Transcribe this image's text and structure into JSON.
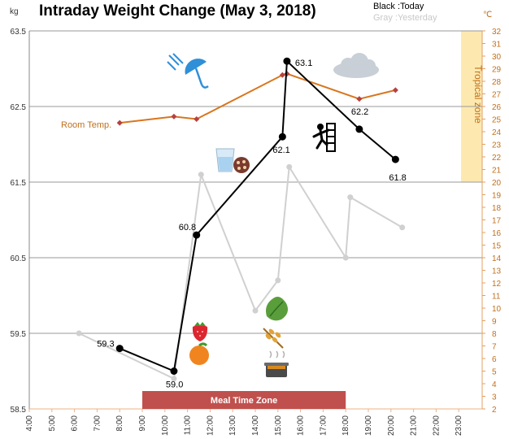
{
  "chart_data": {
    "type": "line",
    "title": "Intraday Weight Change (May 3, 2018)",
    "y_unit": "kg",
    "y2_unit": "℃",
    "ylim": [
      58.5,
      63.5
    ],
    "y_ticks": [
      "58.5",
      "59.5",
      "60.5",
      "61.5",
      "62.5",
      "63.5"
    ],
    "y2lim": [
      2,
      32
    ],
    "x_ticks": [
      "4:00",
      "5:00",
      "6:00",
      "7:00",
      "8:00",
      "9:00",
      "10:00",
      "11:00",
      "12:00",
      "13:00",
      "14:00",
      "15:00",
      "16:00",
      "17:00",
      "18:00",
      "19:00",
      "20:00",
      "21:00",
      "22:00",
      "23:00"
    ],
    "legend": {
      "today": "Black :Today",
      "yesterday": "Gray :Yesterday"
    },
    "series": [
      {
        "name": "Today",
        "color": "#000000",
        "x": [
          8.0,
          10.4,
          11.4,
          15.2,
          15.4,
          18.6,
          20.2
        ],
        "values": [
          59.3,
          59.0,
          60.8,
          62.1,
          63.1,
          62.2,
          61.8
        ],
        "labels": [
          "59.3",
          "59.0",
          "60.8",
          "62.1",
          "63.1",
          "62.2",
          "61.8"
        ]
      },
      {
        "name": "Yesterday",
        "color": "#d0d0d0",
        "x": [
          6.2,
          10.4,
          11.6,
          14.0,
          15.0,
          15.5,
          18.0,
          18.2,
          20.5
        ],
        "values": [
          59.5,
          58.9,
          61.6,
          59.8,
          60.2,
          61.7,
          60.5,
          61.3,
          60.9
        ]
      },
      {
        "name": "Room Temp.",
        "axis": "right",
        "color": "#d8761e",
        "x": [
          8.0,
          10.4,
          11.4,
          15.2,
          15.4,
          18.6,
          20.2
        ],
        "values": [
          24.7,
          25.2,
          25.0,
          28.5,
          28.6,
          26.6,
          27.3
        ]
      }
    ],
    "zones": {
      "meal": {
        "label": "Meal Time Zone",
        "from": 9.0,
        "to": 18.0,
        "color": "#c0504d"
      },
      "tropical": {
        "label": "Tropical zone",
        "from": 20,
        "to": 32,
        "color": "#fde9b0"
      }
    },
    "icons": [
      "umbrella-rain-icon",
      "cloud-icon",
      "water-glass-icon",
      "cookie-icon",
      "climbing-icon",
      "strawberry-icon",
      "orange-icon",
      "lettuce-icon",
      "wheat-icon",
      "cooking-pot-icon"
    ]
  }
}
